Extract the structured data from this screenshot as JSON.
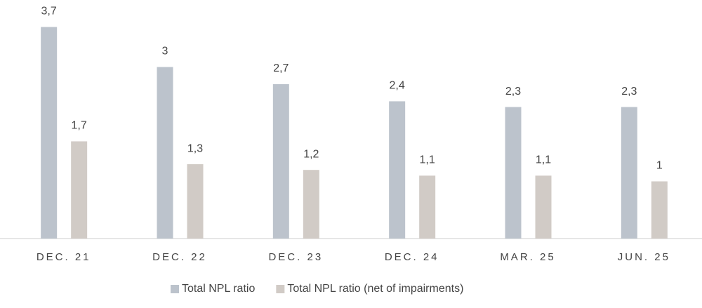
{
  "chart_data": {
    "type": "bar",
    "categories": [
      "DEC. 21",
      "DEC. 22",
      "DEC. 23",
      "DEC. 24",
      "MAR. 25",
      "JUN. 25"
    ],
    "series": [
      {
        "name": "Total NPL ratio",
        "color": "#bcc3cc",
        "values": [
          3.7,
          3,
          2.7,
          2.4,
          2.3,
          2.3
        ],
        "value_labels": [
          "3,7",
          "3",
          "2,7",
          "2,4",
          "2,3",
          "2,3"
        ]
      },
      {
        "name": "Total NPL ratio (net of impairments)",
        "color": "#d1cbc6",
        "values": [
          1.7,
          1.3,
          1.2,
          1.1,
          1.1,
          1
        ],
        "value_labels": [
          "1,7",
          "1,3",
          "1,2",
          "1,1",
          "1,1",
          "1"
        ]
      }
    ],
    "ylim": [
      0,
      4
    ],
    "legend": "bottom"
  }
}
